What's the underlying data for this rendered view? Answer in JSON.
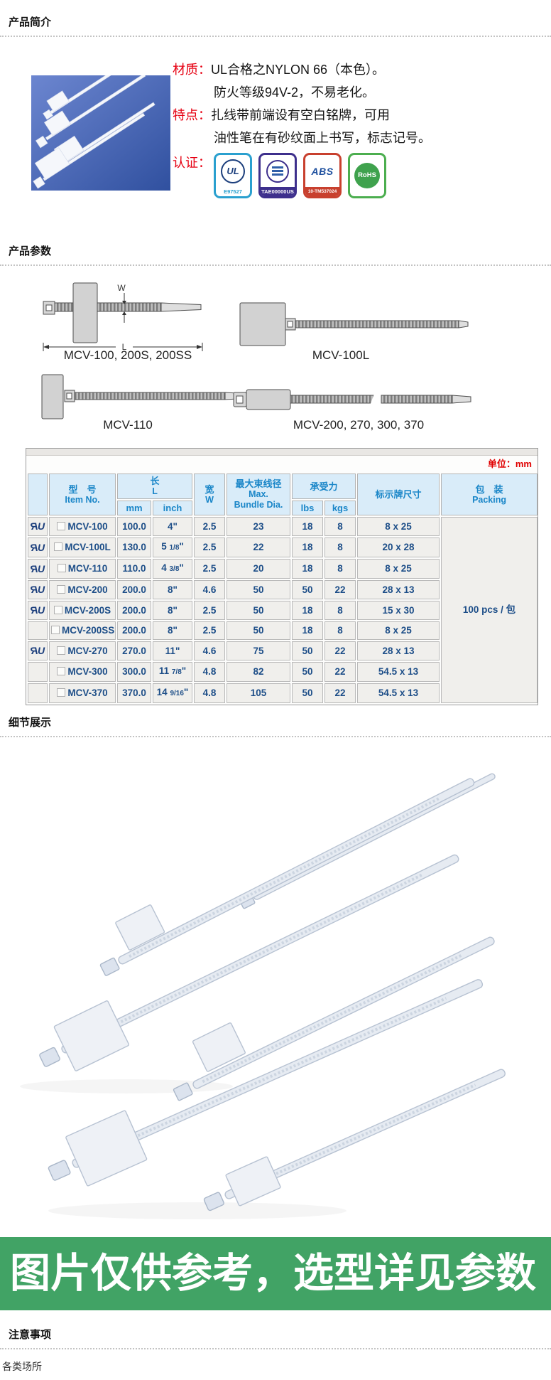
{
  "sections": {
    "intro_title": "产品简介",
    "params_title": "产品参数",
    "details_title": "细节展示",
    "notice_title": "注意事项"
  },
  "intro": {
    "material_label": "材质：",
    "material_line1": "UL合格之NYLON 66（本色）。",
    "material_line2": "防火等级94V-2，不易老化。",
    "feature_label": "特点：",
    "feature_line1": "扎线带前端设有空白铭牌，可用",
    "feature_line2": "油性笔在有砂纹面上书写，标志记号。",
    "cert_label": "认证：",
    "certs": [
      {
        "type": "ul",
        "name": "cul-us-listed-badge",
        "glyph": "UL",
        "code": "E97527",
        "color": "#2aa0cf"
      },
      {
        "type": "dnv",
        "name": "dnv-gl-badge",
        "glyph": "DNV",
        "code": "TAE00000US",
        "color": "#3d2f8c"
      },
      {
        "type": "abs",
        "name": "abs-badge",
        "glyph": "ABS",
        "code": "10-TM537024",
        "color": "#c8402e"
      },
      {
        "type": "rohs",
        "name": "rohs-badge",
        "glyph": "RoHS",
        "code": "",
        "color": "#4cae4f"
      }
    ]
  },
  "diagrams": {
    "a_caption": "MCV-100, 200S, 200SS",
    "b_caption": "MCV-100L",
    "c_caption": "MCV-110",
    "d_caption": "MCV-200, 270, 300, 370",
    "w_label": "W",
    "l_label": "L"
  },
  "table": {
    "unit_note": "单位：mm",
    "header": {
      "item_cn": "型　号",
      "item_en": "Item No.",
      "len_cn": "长",
      "len_en": "L",
      "len_mm": "mm",
      "len_inch": "inch",
      "width_cn": "宽",
      "width_en": "W",
      "dia_cn": "最大束线径",
      "dia_en1": "Max.",
      "dia_en2": "Bundle Dia.",
      "load_cn": "承受力",
      "load_lbs": "lbs",
      "load_kgs": "kgs",
      "tag_cn": "标示牌尺寸",
      "pack_cn": "包　装",
      "pack_en": "Packing"
    },
    "packing_value": "100 pcs / 包",
    "rows": [
      {
        "ul": true,
        "model": "MCV-100",
        "mm": "100.0",
        "inch": "4\"",
        "w": "2.5",
        "dia": "23",
        "lbs": "18",
        "kgs": "8",
        "tag": "8 x 25"
      },
      {
        "ul": true,
        "model": "MCV-100L",
        "mm": "130.0",
        "inch": "5 1/8\"",
        "w": "2.5",
        "dia": "22",
        "lbs": "18",
        "kgs": "8",
        "tag": "20 x 28"
      },
      {
        "ul": true,
        "model": "MCV-110",
        "mm": "110.0",
        "inch": "4 3/8\"",
        "w": "2.5",
        "dia": "20",
        "lbs": "18",
        "kgs": "8",
        "tag": "8 x 25"
      },
      {
        "ul": true,
        "model": "MCV-200",
        "mm": "200.0",
        "inch": "8\"",
        "w": "4.6",
        "dia": "50",
        "lbs": "50",
        "kgs": "22",
        "tag": "28 x 13"
      },
      {
        "ul": true,
        "model": "MCV-200S",
        "mm": "200.0",
        "inch": "8\"",
        "w": "2.5",
        "dia": "50",
        "lbs": "18",
        "kgs": "8",
        "tag": "15 x 30"
      },
      {
        "ul": false,
        "model": "MCV-200SS",
        "mm": "200.0",
        "inch": "8\"",
        "w": "2.5",
        "dia": "50",
        "lbs": "18",
        "kgs": "8",
        "tag": "8 x 25"
      },
      {
        "ul": true,
        "model": "MCV-270",
        "mm": "270.0",
        "inch": "11\"",
        "w": "4.6",
        "dia": "75",
        "lbs": "50",
        "kgs": "22",
        "tag": "28 x 13"
      },
      {
        "ul": false,
        "model": "MCV-300",
        "mm": "300.0",
        "inch": "11 7/8\"",
        "w": "4.8",
        "dia": "82",
        "lbs": "50",
        "kgs": "22",
        "tag": "54.5 x 13"
      },
      {
        "ul": false,
        "model": "MCV-370",
        "mm": "370.0",
        "inch": "14 9/16\"",
        "w": "4.8",
        "dia": "105",
        "lbs": "50",
        "kgs": "22",
        "tag": "54.5 x 13"
      }
    ]
  },
  "banner": {
    "text": "图片仅供参考，选型详见参数",
    "bg": "#41a365"
  },
  "footer": {
    "note": "各类场所"
  }
}
